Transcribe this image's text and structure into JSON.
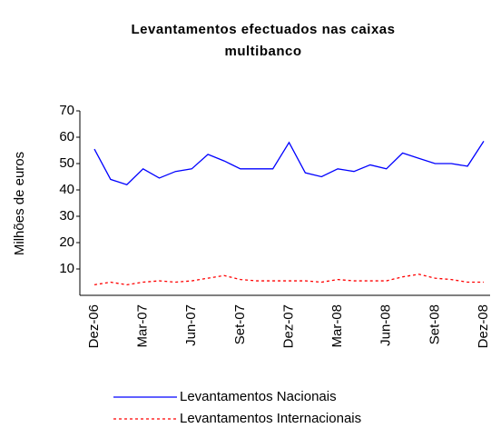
{
  "chart_data": {
    "type": "line",
    "title": [
      "Levantamentos efectuados nas caixas",
      "multibanco"
    ],
    "y_label": "Milhões de euros",
    "categories": [
      "Dez-06",
      null,
      null,
      "Mar-07",
      null,
      null,
      "Jun-07",
      null,
      null,
      "Set-07",
      null,
      null,
      "Dez-07",
      null,
      null,
      "Mar-08",
      null,
      null,
      "Jun-08",
      null,
      null,
      "Set-08",
      null,
      null,
      "Dez-08"
    ],
    "series": [
      {
        "name": "Levantamentos Nacionais",
        "color": "#0000ff",
        "dash": "solid",
        "values": [
          55.5,
          44,
          42,
          48,
          44.5,
          47,
          48,
          53.5,
          51,
          48,
          48,
          48,
          58,
          46.5,
          45,
          48,
          47,
          49.5,
          48,
          54,
          52,
          50,
          50,
          49,
          58.5
        ]
      },
      {
        "name": "Levantamentos Internacionais",
        "color": "#ff0000",
        "dash": "dashed",
        "values": [
          4,
          5,
          4,
          5,
          5.5,
          5,
          5.5,
          6.5,
          7.5,
          6,
          5.5,
          5.5,
          5.5,
          5.5,
          5,
          6,
          5.5,
          5.5,
          5.5,
          7,
          8,
          6.5,
          6,
          5,
          5
        ]
      }
    ],
    "ylim": [
      0,
      70
    ],
    "yticks": [
      10,
      20,
      30,
      40,
      50,
      60,
      70
    ],
    "grid": false,
    "legend": "bottom"
  }
}
